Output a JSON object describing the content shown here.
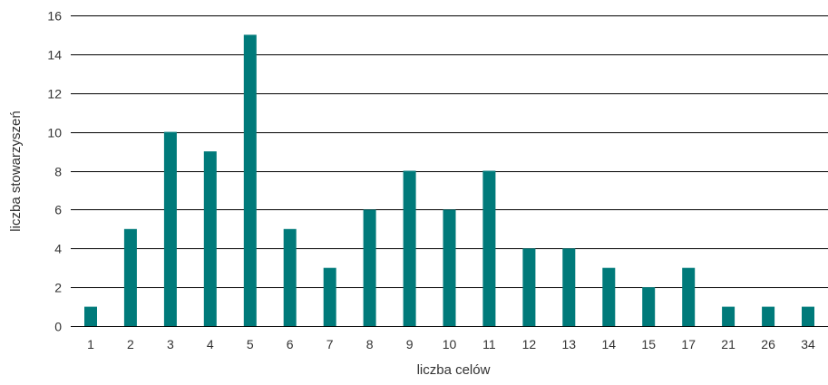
{
  "chart_data": {
    "type": "bar",
    "title": "",
    "xlabel": "liczba celów",
    "ylabel": "liczba stowarzyszeń",
    "categories": [
      "1",
      "2",
      "3",
      "4",
      "5",
      "6",
      "7",
      "8",
      "9",
      "10",
      "11",
      "12",
      "13",
      "14",
      "15",
      "17",
      "21",
      "26",
      "34"
    ],
    "series": [
      {
        "values": [
          1,
          5,
          10,
          9,
          15,
          5,
          3,
          6,
          8,
          6,
          8,
          4,
          4,
          3,
          2,
          3,
          1,
          1,
          1
        ]
      }
    ],
    "ylim": [
      0,
      16
    ],
    "yticks": [
      0,
      2,
      4,
      6,
      8,
      10,
      12,
      14,
      16
    ],
    "grid": true,
    "legend": "none",
    "colors": {
      "bar": "#007a7a",
      "grid": "#000000"
    }
  }
}
